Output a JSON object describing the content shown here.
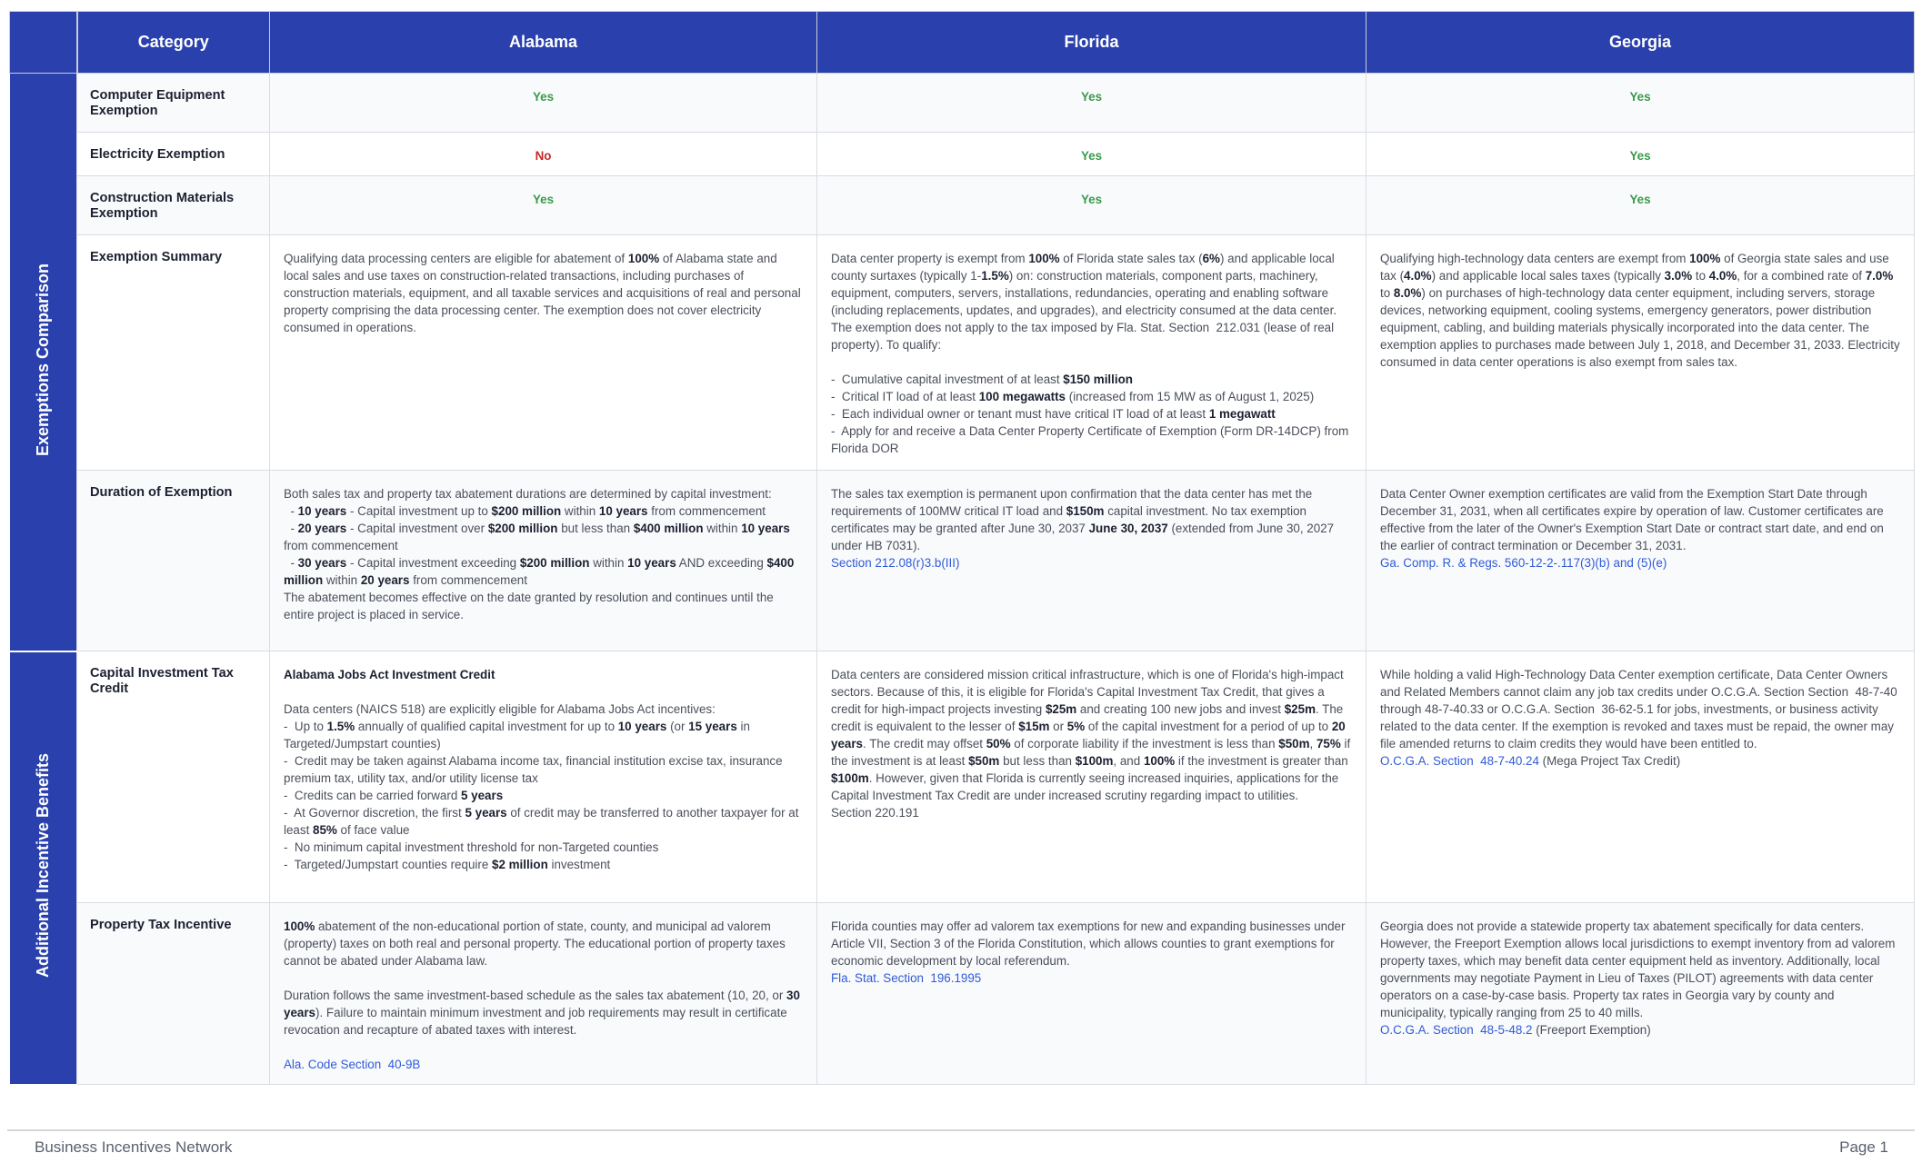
{
  "header": {
    "corner": "",
    "category": "Category",
    "states": [
      "Alabama",
      "Florida",
      "Georgia"
    ]
  },
  "groups": [
    "Exemptions Comparison",
    "Additional Incentive Benefits"
  ],
  "colors": {
    "header": "#2a40ad",
    "yes": "#3a9a4a",
    "no": "#c62828",
    "link": "#2f5bd8"
  },
  "rows": [
    {
      "category": "Computer Equipment Exemption",
      "values": [
        "Yes",
        "Yes",
        "Yes"
      ]
    },
    {
      "category": "Electricity Exemption",
      "values": [
        "No",
        "Yes",
        "Yes"
      ]
    },
    {
      "category": "Construction Materials Exemption",
      "values": [
        "Yes",
        "Yes",
        "Yes"
      ]
    },
    {
      "category": "Exemption Summary",
      "cells": [
        [
          [
            "Qualifying data processing centers are eligible for abatement of ",
            {
              "b": "100%"
            },
            " of Alabama state and local sales and use taxes on construction-related transactions, including purchases of construction materials, equipment, and all taxable services and acquisitions of real and personal property comprising the data processing center. The exemption does not cover electricity consumed in operations."
          ]
        ],
        [
          [
            "Data center property is exempt from ",
            {
              "b": "100%"
            },
            " of Florida state sales tax (",
            {
              "b": "6%"
            },
            ") and applicable local county surtaxes (typically 1-",
            {
              "b": "1.5%"
            },
            ") on: construction materials, component parts, machinery, equipment, computers, servers, installations, redundancies, operating and enabling software (including replacements, updates, and upgrades), and electricity consumed at the data center. The exemption does not apply to the tax imposed by Fla. Stat. Section  212.031 (lease of real property). To qualify:"
          ],
          [],
          [
            "-  Cumulative capital investment of at least ",
            {
              "b": "$150 million"
            }
          ],
          [
            "-  Critical IT load of at least ",
            {
              "b": "100 megawatts"
            },
            " (increased from 15 MW as of August 1, 2025)"
          ],
          [
            "-  Each individual owner or tenant must have critical IT load of at least ",
            {
              "b": "1 megawatt"
            }
          ],
          [
            "-  Apply for and receive a Data Center Property Certificate of Exemption (Form DR-14DCP) from Florida DOR"
          ]
        ],
        [
          [
            "Qualifying high-technology data centers are exempt from ",
            {
              "b": "100%"
            },
            " of Georgia state sales and use tax (",
            {
              "b": "4.0%"
            },
            ") and applicable local sales taxes (typically ",
            {
              "b": "3.0%"
            },
            " to ",
            {
              "b": "4.0%"
            },
            ", for a combined rate of ",
            {
              "b": "7.0%"
            },
            " to ",
            {
              "b": "8.0%"
            },
            ") on purchases of high-technology data center equipment, including servers, storage devices, networking equipment, cooling systems, emergency generators, power distribution equipment, cabling, and building materials physically incorporated into the data center. The exemption applies to purchases made between July 1, 2018, and December 31, 2033. Electricity consumed in data center operations is also exempt from sales tax."
          ]
        ]
      ]
    },
    {
      "category": "Duration of Exemption",
      "cells": [
        [
          [
            "Both sales tax and property tax abatement durations are determined by capital investment:"
          ],
          [
            "  - ",
            {
              "b": "10 years"
            },
            " - Capital investment up to ",
            {
              "b": "$200 million"
            },
            " within ",
            {
              "b": "10 years"
            },
            " from commencement"
          ],
          [
            "  - ",
            {
              "b": "20 years"
            },
            " - Capital investment over ",
            {
              "b": "$200 million"
            },
            " but less than ",
            {
              "b": "$400 million"
            },
            " within ",
            {
              "b": "10 years"
            },
            " from commencement"
          ],
          [
            "  - ",
            {
              "b": "30 years"
            },
            " - Capital investment exceeding ",
            {
              "b": "$200 million"
            },
            " within ",
            {
              "b": "10 years"
            },
            " AND exceeding ",
            {
              "b": "$400 million"
            },
            " within ",
            {
              "b": "20 years"
            },
            " from commencement"
          ],
          [
            "The abatement becomes effective on the date granted by resolution and continues until the entire project is placed in service."
          ]
        ],
        [
          [
            "The sales tax exemption is permanent upon confirmation that the data center has met the requirements of 100MW critical IT load and ",
            {
              "b": "$150m"
            },
            " capital investment. No tax exemption certificates may be granted after June 30, 2037 ",
            {
              "b": "June 30, 2037"
            },
            " (extended from June 30, 2027 under HB 7031)."
          ],
          [
            {
              "a": "Section 212.08(r)3.b(III)"
            }
          ]
        ],
        [
          [
            "Data Center Owner exemption certificates are valid from the Exemption Start Date through December 31, 2031, when all certificates expire by operation of law. Customer certificates are effective from the later of the Owner's Exemption Start Date or contract start date, and end on the earlier of contract termination or December 31, 2031."
          ],
          [
            {
              "a": "Ga. Comp. R. & Regs. 560-12-2-.117(3)(b) and (5)(e)"
            }
          ]
        ]
      ]
    },
    {
      "category": "Capital Investment Tax Credit",
      "cells": [
        [
          [
            {
              "b": "Alabama Jobs Act Investment Credit"
            }
          ],
          [],
          [
            "Data centers (NAICS 518) are explicitly eligible for Alabama Jobs Act incentives:"
          ],
          [
            "-  Up to ",
            {
              "b": "1.5%"
            },
            " annually of qualified capital investment for up to ",
            {
              "b": "10 years"
            },
            " (or ",
            {
              "b": "15 years"
            },
            " in Targeted/Jumpstart counties)"
          ],
          [
            "-  Credit may be taken against Alabama income tax, financial institution excise tax, insurance premium tax, utility tax, and/or utility license tax"
          ],
          [
            "-  Credits can be carried forward ",
            {
              "b": "5 years"
            }
          ],
          [
            "-  At Governor discretion, the first ",
            {
              "b": "5 years"
            },
            " of credit may be transferred to another taxpayer for at least ",
            {
              "b": "85%"
            },
            " of face value"
          ],
          [
            "-  No minimum capital investment threshold for non-Targeted counties"
          ],
          [
            "-  Targeted/Jumpstart counties require ",
            {
              "b": "$2 million"
            },
            " investment"
          ]
        ],
        [
          [
            "Data centers are considered mission critical infrastructure, which is one of Florida's high-impact sectors. Because of this, it is eligible for Florida's Capital Investment Tax Credit, that gives a credit for high-impact projects investing ",
            {
              "b": "$25m"
            },
            " and creating 100 new jobs and invest ",
            {
              "b": "$25m"
            },
            ". The credit is equivalent to the lesser of ",
            {
              "b": "$15m"
            },
            " or ",
            {
              "b": "5%"
            },
            " of the capital investment for a period of up to ",
            {
              "b": "20 years"
            },
            ". The credit may offset ",
            {
              "b": "50%"
            },
            " of corporate liability if the investment is less than ",
            {
              "b": "$50m"
            },
            ", ",
            {
              "b": "75%"
            },
            " if the investment is at least ",
            {
              "b": "$50m"
            },
            " but less than ",
            {
              "b": "$100m"
            },
            ", and ",
            {
              "b": "100%"
            },
            " if the investment is greater than ",
            {
              "b": "$100m"
            },
            ". However, given that Florida is currently seeing increased inquiries, applications for the Capital Investment Tax Credit are under increased scrutiny regarding impact to utilities."
          ],
          [
            "Section 220.191"
          ]
        ],
        [
          [
            "While holding a valid High-Technology Data Center exemption certificate, Data Center Owners and Related Members cannot claim any job tax credits under O.C.G.A. Section Section  48-7-40 through 48-7-40.33 or O.C.G.A. Section  36-62-5.1 for jobs, investments, or business activity related to the data center. If the exemption is revoked and taxes must be repaid, the owner may file amended returns to claim credits they would have been entitled to."
          ],
          [
            {
              "a": "O.C.G.A. Section  48-7-40.24"
            },
            " (Mega Project Tax Credit)"
          ]
        ]
      ]
    },
    {
      "category": "Property Tax Incentive",
      "cells": [
        [
          [
            {
              "b": "100%"
            },
            " abatement of the non-educational portion of state, county, and municipal ad valorem (property) taxes on both real and personal property. The educational portion of property taxes cannot be abated under Alabama law."
          ],
          [],
          [
            "Duration follows the same investment-based schedule as the sales tax abatement (10, 20, or ",
            {
              "b": "30 years"
            },
            "). Failure to maintain minimum investment and job requirements may result in certificate revocation and recapture of abated taxes with interest."
          ],
          [],
          [
            {
              "a": "Ala. Code Section  40-9B"
            }
          ]
        ],
        [
          [
            "Florida counties may offer ad valorem tax exemptions for new and expanding businesses under Article VII, Section 3 of the Florida Constitution, which allows counties to grant exemptions for economic development by local referendum."
          ],
          [
            {
              "a": "Fla. Stat. Section  196.1995"
            }
          ]
        ],
        [
          [
            "Georgia does not provide a statewide property tax abatement specifically for data centers. However, the Freeport Exemption allows local jurisdictions to exempt inventory from ad valorem property taxes, which may benefit data center equipment held as inventory. Additionally, local governments may negotiate Payment in Lieu of Taxes (PILOT) agreements with data center operators on a case-by-case basis. Property tax rates in Georgia vary by county and municipality, typically ranging from 25 to 40 mills."
          ],
          [
            {
              "a": "O.C.G.A. Section  48-5-48.2"
            },
            " (Freeport Exemption)"
          ]
        ]
      ]
    }
  ],
  "footer": {
    "left": "Business Incentives Network",
    "right": "Page 1"
  }
}
